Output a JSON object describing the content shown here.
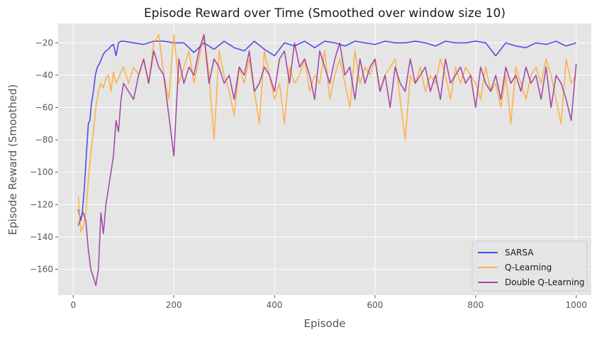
{
  "chart_data": {
    "type": "line",
    "title": "Episode Reward over Time (Smoothed over window size 10)",
    "xlabel": "Episode",
    "ylabel": "Episode Reward (Smoothed)",
    "xlim": [
      -30,
      1030
    ],
    "ylim": [
      -176,
      -8
    ],
    "xticks": [
      0,
      200,
      400,
      600,
      800,
      1000
    ],
    "yticks": [
      -160,
      -140,
      -120,
      -100,
      -80,
      -60,
      -40,
      -20
    ],
    "grid": true,
    "legend_position": "lower-right",
    "series": [
      {
        "name": "SARSA",
        "color": "#3333ee",
        "x": [
          10,
          15,
          18,
          22,
          26,
          30,
          33,
          36,
          40,
          44,
          48,
          52,
          56,
          60,
          65,
          70,
          75,
          80,
          85,
          90,
          95,
          100,
          120,
          140,
          160,
          180,
          200,
          220,
          240,
          260,
          280,
          300,
          320,
          340,
          360,
          380,
          400,
          420,
          440,
          460,
          480,
          500,
          520,
          540,
          560,
          580,
          600,
          620,
          640,
          660,
          680,
          700,
          720,
          740,
          760,
          780,
          800,
          820,
          840,
          860,
          880,
          900,
          920,
          940,
          960,
          980,
          1000
        ],
        "y": [
          -123,
          -130,
          -125,
          -110,
          -90,
          -70,
          -68,
          -58,
          -50,
          -40,
          -35,
          -33,
          -30,
          -27,
          -25,
          -24,
          -22,
          -21,
          -28,
          -20,
          -19,
          -19,
          -20,
          -21,
          -19,
          -19,
          -20,
          -20,
          -26,
          -20,
          -24,
          -19,
          -23,
          -25,
          -19,
          -24,
          -28,
          -20,
          -22,
          -19,
          -23,
          -19,
          -20,
          -22,
          -19,
          -20,
          -21,
          -19,
          -20,
          -20,
          -19,
          -20,
          -22,
          -19,
          -20,
          -20,
          -19,
          -20,
          -28,
          -20,
          -22,
          -23,
          -20,
          -21,
          -19,
          -22,
          -20
        ]
      },
      {
        "name": "Q-Learning",
        "color": "#ffaa33",
        "x": [
          10,
          15,
          20,
          25,
          30,
          35,
          40,
          45,
          50,
          55,
          60,
          65,
          70,
          75,
          80,
          85,
          90,
          95,
          100,
          110,
          120,
          130,
          140,
          150,
          160,
          170,
          180,
          190,
          200,
          210,
          220,
          230,
          240,
          250,
          260,
          270,
          280,
          290,
          300,
          310,
          320,
          330,
          340,
          350,
          360,
          370,
          380,
          390,
          400,
          410,
          420,
          430,
          440,
          450,
          460,
          470,
          480,
          490,
          500,
          510,
          520,
          530,
          540,
          550,
          560,
          570,
          580,
          590,
          600,
          610,
          620,
          630,
          640,
          650,
          660,
          670,
          680,
          690,
          700,
          710,
          720,
          730,
          740,
          750,
          760,
          770,
          780,
          790,
          800,
          810,
          820,
          830,
          840,
          850,
          860,
          870,
          880,
          890,
          900,
          910,
          920,
          930,
          940,
          950,
          960,
          970,
          980,
          990,
          1000
        ],
        "y": [
          -115,
          -137,
          -133,
          -125,
          -105,
          -88,
          -75,
          -60,
          -50,
          -45,
          -48,
          -42,
          -40,
          -50,
          -38,
          -45,
          -42,
          -38,
          -35,
          -45,
          -35,
          -40,
          -30,
          -45,
          -20,
          -15,
          -40,
          -55,
          -15,
          -45,
          -35,
          -25,
          -45,
          -30,
          -15,
          -40,
          -80,
          -25,
          -40,
          -50,
          -65,
          -35,
          -45,
          -30,
          -50,
          -70,
          -25,
          -40,
          -55,
          -45,
          -70,
          -35,
          -45,
          -40,
          -30,
          -50,
          -40,
          -45,
          -25,
          -55,
          -40,
          -30,
          -45,
          -60,
          -25,
          -45,
          -35,
          -40,
          -30,
          -50,
          -40,
          -35,
          -30,
          -55,
          -80,
          -40,
          -45,
          -35,
          -50,
          -40,
          -45,
          -30,
          -40,
          -55,
          -35,
          -45,
          -35,
          -40,
          -45,
          -55,
          -35,
          -50,
          -45,
          -60,
          -40,
          -70,
          -35,
          -45,
          -55,
          -40,
          -35,
          -45,
          -30,
          -40,
          -55,
          -70,
          -30,
          -45,
          -40
        ]
      },
      {
        "name": "Double Q-Learning",
        "color": "#993399",
        "x": [
          10,
          15,
          20,
          25,
          30,
          35,
          40,
          45,
          50,
          55,
          60,
          65,
          70,
          75,
          80,
          85,
          90,
          95,
          100,
          110,
          120,
          130,
          140,
          150,
          160,
          170,
          180,
          190,
          200,
          210,
          220,
          230,
          240,
          250,
          260,
          270,
          280,
          290,
          300,
          310,
          320,
          330,
          340,
          350,
          360,
          370,
          380,
          390,
          400,
          410,
          420,
          430,
          440,
          450,
          460,
          470,
          480,
          490,
          500,
          510,
          520,
          530,
          540,
          550,
          560,
          570,
          580,
          590,
          600,
          610,
          620,
          630,
          640,
          650,
          660,
          670,
          680,
          690,
          700,
          710,
          720,
          730,
          740,
          750,
          760,
          770,
          780,
          790,
          800,
          810,
          820,
          830,
          840,
          850,
          860,
          870,
          880,
          890,
          900,
          910,
          920,
          930,
          940,
          950,
          960,
          970,
          980,
          990,
          1000
        ],
        "y": [
          -133,
          -128,
          -125,
          -130,
          -148,
          -160,
          -165,
          -170,
          -160,
          -125,
          -138,
          -120,
          -110,
          -100,
          -90,
          -68,
          -75,
          -55,
          -45,
          -50,
          -55,
          -40,
          -30,
          -45,
          -25,
          -35,
          -40,
          -65,
          -90,
          -30,
          -45,
          -35,
          -40,
          -25,
          -15,
          -45,
          -30,
          -35,
          -45,
          -40,
          -55,
          -35,
          -40,
          -25,
          -50,
          -45,
          -35,
          -40,
          -50,
          -30,
          -25,
          -45,
          -20,
          -35,
          -30,
          -40,
          -55,
          -25,
          -35,
          -45,
          -30,
          -20,
          -40,
          -35,
          -55,
          -30,
          -45,
          -35,
          -30,
          -50,
          -40,
          -60,
          -35,
          -45,
          -50,
          -30,
          -45,
          -40,
          -35,
          -50,
          -40,
          -55,
          -30,
          -45,
          -40,
          -35,
          -45,
          -40,
          -60,
          -35,
          -45,
          -50,
          -40,
          -55,
          -35,
          -45,
          -40,
          -50,
          -35,
          -45,
          -40,
          -55,
          -35,
          -60,
          -40,
          -45,
          -55,
          -68,
          -33
        ]
      }
    ]
  }
}
